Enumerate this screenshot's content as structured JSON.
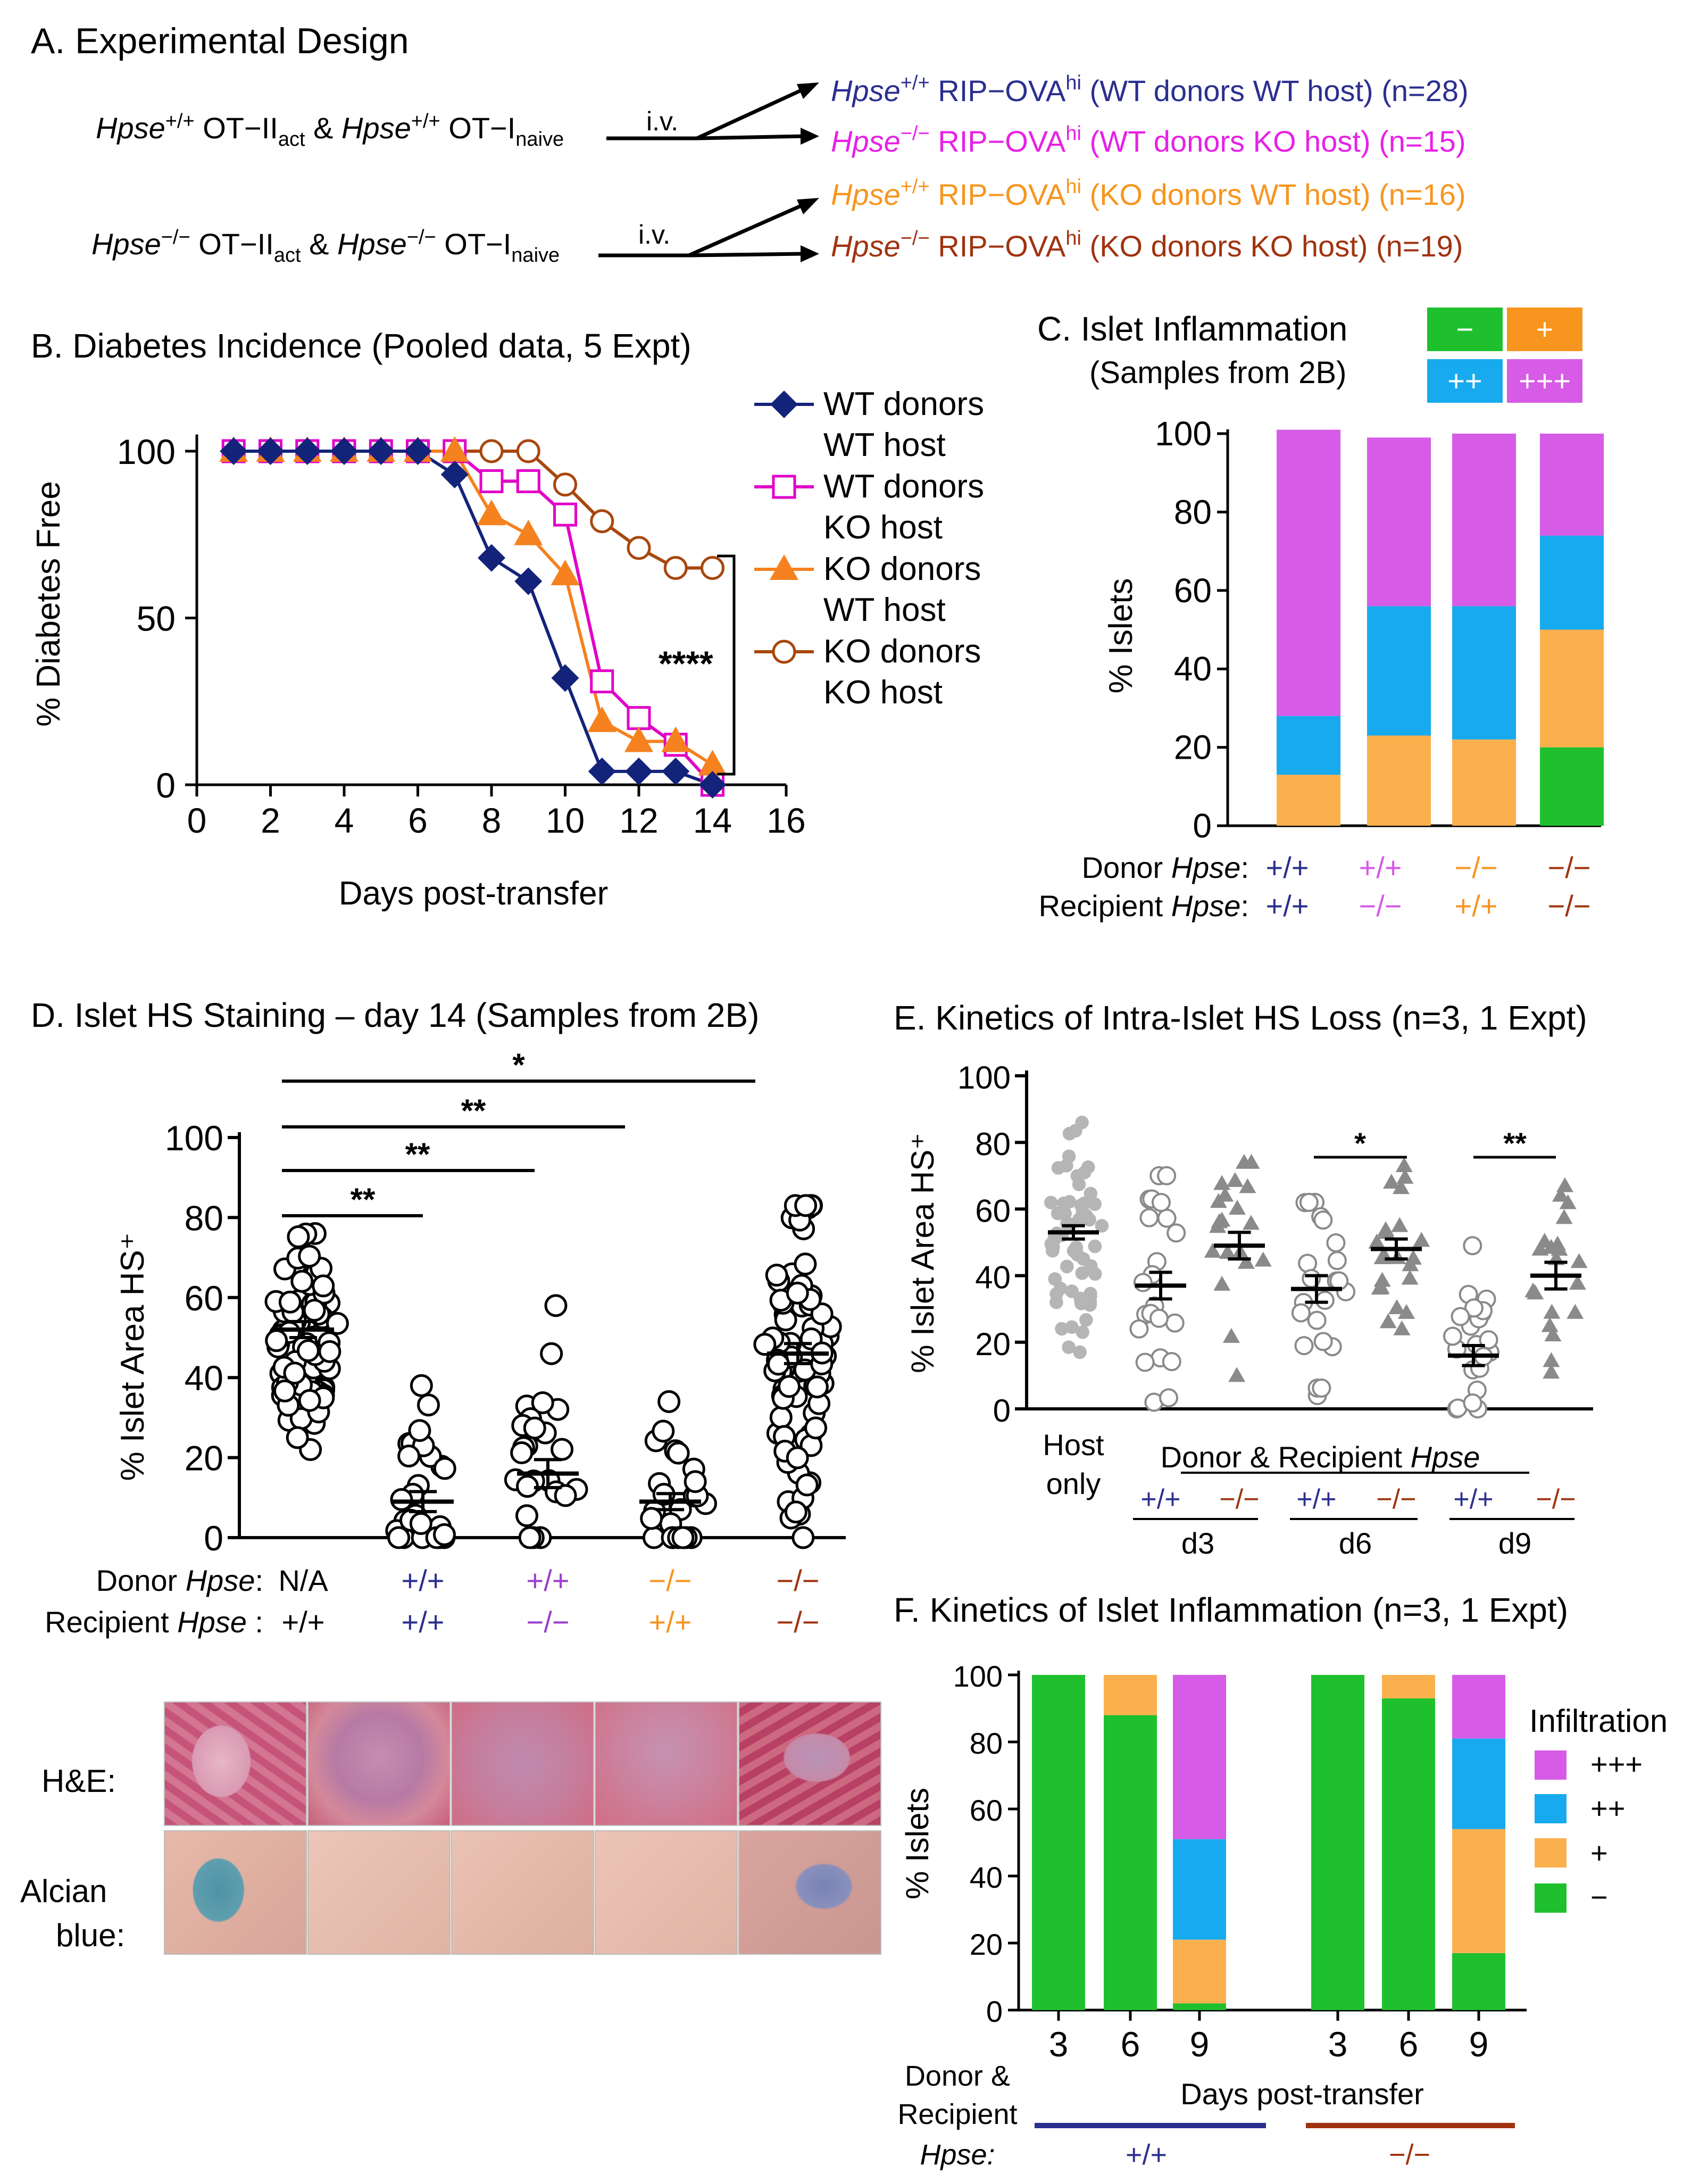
{
  "colors": {
    "blue": "#2B2F8F",
    "magenta": "#E621E6",
    "orange": "#F7951E",
    "brown": "#A0330F",
    "navy": "#14237A",
    "pink_series": "#E100C8",
    "orange_series": "#F5811F",
    "brown_series": "#A8470E",
    "cat_minus": "#1FC02D",
    "cat_plus": "#FBB04E",
    "cat_pp": "#17AAEE",
    "cat_ppp": "#D65BE6",
    "purple_label": "#9B3FCC"
  },
  "panelA": {
    "title": "A. Experimental Design",
    "row1_donor": {
      "g1": "Hpse",
      "s1": "+/+",
      "t1": " OT−II",
      "sub1": "act",
      "amp": " & ",
      "g2": "Hpse",
      "s2": "+/+",
      "t2": " OT−I",
      "sub2": "naive"
    },
    "row2_donor": {
      "g1": "Hpse",
      "s1": "−/−",
      "t1": " OT−II",
      "sub1": "act",
      "amp": " & ",
      "g2": "Hpse",
      "s2": "−/−",
      "t2": " OT−I",
      "sub2": "naive"
    },
    "iv": "i.v.",
    "hosts": [
      {
        "gene": "Hpse",
        "sup": "+/+",
        "strain": " RIP−OVA",
        "strain_sup": "hi",
        "desc": " (WT donors WT host) (n=28)"
      },
      {
        "gene": "Hpse",
        "sup": "−/−",
        "strain": "  RIP−OVA",
        "strain_sup": "hi",
        "desc": " (WT donors KO host) (n=15)"
      },
      {
        "gene": "Hpse",
        "sup": "+/+",
        "strain": " RIP−OVA",
        "strain_sup": "hi",
        "desc": " (KO donors WT host) (n=16)"
      },
      {
        "gene": "Hpse",
        "sup": "−/−",
        "strain": "  RIP−OVA",
        "strain_sup": "hi",
        "desc": " (KO donors KO host) (n=19)"
      }
    ]
  },
  "panelB": {
    "title": "B. Diabetes Incidence (Pooled data, 5 Expt)",
    "significance": "****",
    "legend": [
      {
        "line1": "WT donors",
        "line2": "WT host"
      },
      {
        "line1": "WT donors",
        "line2": "KO host"
      },
      {
        "line1": "KO donors",
        "line2": "WT host"
      },
      {
        "line1": "KO donors",
        "line2": "KO host"
      }
    ]
  },
  "panelC": {
    "title_line1": "C. Islet Inflammation",
    "title_line2": "(Samples from 2B)",
    "legend_boxes": [
      "−",
      "+",
      "++",
      "+++"
    ],
    "row_labels": [
      {
        "prefix": "Donor ",
        "gene": "Hpse",
        "suffix": ":"
      },
      {
        "prefix": "Recipient ",
        "gene": "Hpse",
        "suffix": ":"
      }
    ],
    "donor": [
      "+/+",
      "+/+",
      "−/−",
      "−/−"
    ],
    "recipient": [
      "+/+",
      "−/−",
      "+/+",
      "−/−"
    ]
  },
  "panelD": {
    "title": "D. Islet HS Staining – day 14 (Samples from 2B)",
    "sig": [
      "*",
      "**",
      "**",
      "**"
    ],
    "row_labels": [
      {
        "prefix": "Donor ",
        "gene": "Hpse",
        "suffix": ":"
      },
      {
        "prefix": "Recipient ",
        "gene": "Hpse",
        "suffix": " :"
      }
    ],
    "donor": [
      "N/A",
      "+/+",
      "+/+",
      "−/−",
      "−/−"
    ],
    "recipient": [
      "+/+",
      "+/+",
      "−/−",
      "+/+",
      "−/−"
    ],
    "stain_labels": [
      "H&E:",
      "Alcian",
      "blue:"
    ]
  },
  "panelE": {
    "title": "E. Kinetics of Intra-Islet HS Loss (n=3, 1 Expt)",
    "host_only": [
      "Host",
      "only"
    ],
    "donor_recipient": {
      "text": "Donor & Recipient ",
      "gene": "Hpse"
    },
    "genotypes": [
      "+/+",
      "−/−",
      "+/+",
      "−/−",
      "+/+",
      "−/−"
    ],
    "days": [
      "d3",
      "d6",
      "d9"
    ],
    "sig": [
      "*",
      "**"
    ]
  },
  "panelF": {
    "title": "F. Kinetics of Islet Inflammation (n=3, 1 Expt)",
    "legend_title": "Infiltration",
    "legend": [
      "+++",
      "++",
      "+",
      "−"
    ],
    "row_label": [
      "Donor &",
      "Recipient",
      "Hpse:"
    ],
    "genotypes": [
      "+/+",
      "−/−"
    ]
  },
  "chart_data": [
    {
      "id": "B",
      "type": "line",
      "title": "B. Diabetes Incidence (Pooled data, 5 Expt)",
      "xlabel": "Days post-transfer",
      "ylabel": "% Diabetes Free",
      "xlim": [
        0,
        16
      ],
      "ylim": [
        0,
        100
      ],
      "xticks": [
        0,
        2,
        4,
        6,
        8,
        10,
        12,
        14,
        16
      ],
      "yticks": [
        0,
        50,
        100
      ],
      "series": [
        {
          "name": "WT donors WT host",
          "marker": "diamond",
          "x": [
            1,
            2,
            3,
            4,
            5,
            6,
            7,
            8,
            9,
            10,
            11,
            12,
            13,
            14
          ],
          "y": [
            100,
            100,
            100,
            100,
            100,
            100,
            93,
            68,
            61,
            32,
            4,
            4,
            4,
            0
          ]
        },
        {
          "name": "WT donors KO host",
          "marker": "square-open",
          "x": [
            1,
            2,
            3,
            4,
            5,
            6,
            7,
            8,
            9,
            10,
            11,
            12,
            13,
            14
          ],
          "y": [
            100,
            100,
            100,
            100,
            100,
            100,
            100,
            91,
            91,
            81,
            31,
            20,
            12,
            0
          ]
        },
        {
          "name": "KO donors WT host",
          "marker": "triangle",
          "x": [
            1,
            2,
            3,
            4,
            5,
            6,
            7,
            8,
            9,
            10,
            11,
            12,
            13,
            14
          ],
          "y": [
            100,
            100,
            100,
            100,
            100,
            100,
            100,
            81,
            75,
            63,
            19,
            13,
            13,
            6
          ]
        },
        {
          "name": "KO donors KO host",
          "marker": "circle-open",
          "x": [
            1,
            2,
            3,
            4,
            5,
            6,
            7,
            8,
            9,
            10,
            11,
            12,
            13,
            14
          ],
          "y": [
            100,
            100,
            100,
            100,
            100,
            100,
            100,
            100,
            100,
            90,
            79,
            71,
            65,
            65
          ]
        }
      ]
    },
    {
      "id": "C",
      "type": "bar",
      "stacked": true,
      "ylabel": "% Islets",
      "ylim": [
        0,
        100
      ],
      "yticks": [
        0,
        20,
        40,
        60,
        80,
        100
      ],
      "categories": [
        "WT donors WT host",
        "WT donors KO host",
        "KO donors WT host",
        "KO donors KO host"
      ],
      "series": [
        {
          "name": "−",
          "values": [
            0,
            0,
            0,
            20
          ]
        },
        {
          "name": "+",
          "values": [
            13,
            23,
            22,
            30
          ]
        },
        {
          "name": "++",
          "values": [
            15,
            33,
            34,
            24
          ]
        },
        {
          "name": "+++",
          "values": [
            73,
            43,
            44,
            26
          ]
        }
      ]
    },
    {
      "id": "D",
      "type": "scatter",
      "ylabel": "% Islet Area HS⁺",
      "ylim": [
        0,
        100
      ],
      "yticks": [
        0,
        20,
        40,
        60,
        80,
        100
      ],
      "categories": [
        "Host only",
        "WT donors WT host",
        "WT donors KO host",
        "KO donors WT host",
        "KO donors KO host"
      ],
      "means": [
        52,
        9,
        16,
        9,
        46
      ],
      "sem": [
        2,
        2.5,
        3.5,
        2,
        2.5
      ],
      "n_points": [
        70,
        26,
        24,
        24,
        78
      ],
      "ranges": [
        [
          22,
          76
        ],
        [
          0,
          38
        ],
        [
          0,
          58
        ],
        [
          0,
          34
        ],
        [
          0,
          83
        ]
      ]
    },
    {
      "id": "E",
      "type": "scatter",
      "ylabel": "% Islet Area HS⁺",
      "ylim": [
        0,
        100
      ],
      "yticks": [
        0,
        20,
        40,
        60,
        80,
        100
      ],
      "categories": [
        "Host only",
        "d3 +/+",
        "d3 −/−",
        "d6 +/+",
        "d6 −/−",
        "d9 +/+",
        "d9 −/−"
      ],
      "means": [
        53,
        37,
        49,
        36,
        48,
        16,
        40
      ],
      "sem": [
        2,
        4,
        4,
        4,
        3,
        3,
        4
      ],
      "n_points": [
        60,
        22,
        20,
        22,
        22,
        22,
        20
      ],
      "ranges": [
        [
          17,
          86
        ],
        [
          2,
          70
        ],
        [
          10,
          74
        ],
        [
          4,
          62
        ],
        [
          24,
          73
        ],
        [
          0,
          49
        ],
        [
          11,
          67
        ]
      ]
    },
    {
      "id": "F",
      "type": "bar",
      "stacked": true,
      "xlabel": "Days post-transfer",
      "ylabel": "% Islets",
      "ylim": [
        0,
        100
      ],
      "yticks": [
        0,
        20,
        40,
        60,
        80,
        100
      ],
      "categories": [
        "3",
        "6",
        "9",
        "3",
        "6",
        "9"
      ],
      "series": [
        {
          "name": "−",
          "values": [
            100,
            88,
            2,
            100,
            93,
            17
          ]
        },
        {
          "name": "+",
          "values": [
            0,
            12,
            19,
            0,
            7,
            37
          ]
        },
        {
          "name": "++",
          "values": [
            0,
            0,
            30,
            0,
            0,
            27
          ]
        },
        {
          "name": "+++",
          "values": [
            0,
            0,
            49,
            0,
            0,
            19
          ]
        }
      ]
    }
  ]
}
